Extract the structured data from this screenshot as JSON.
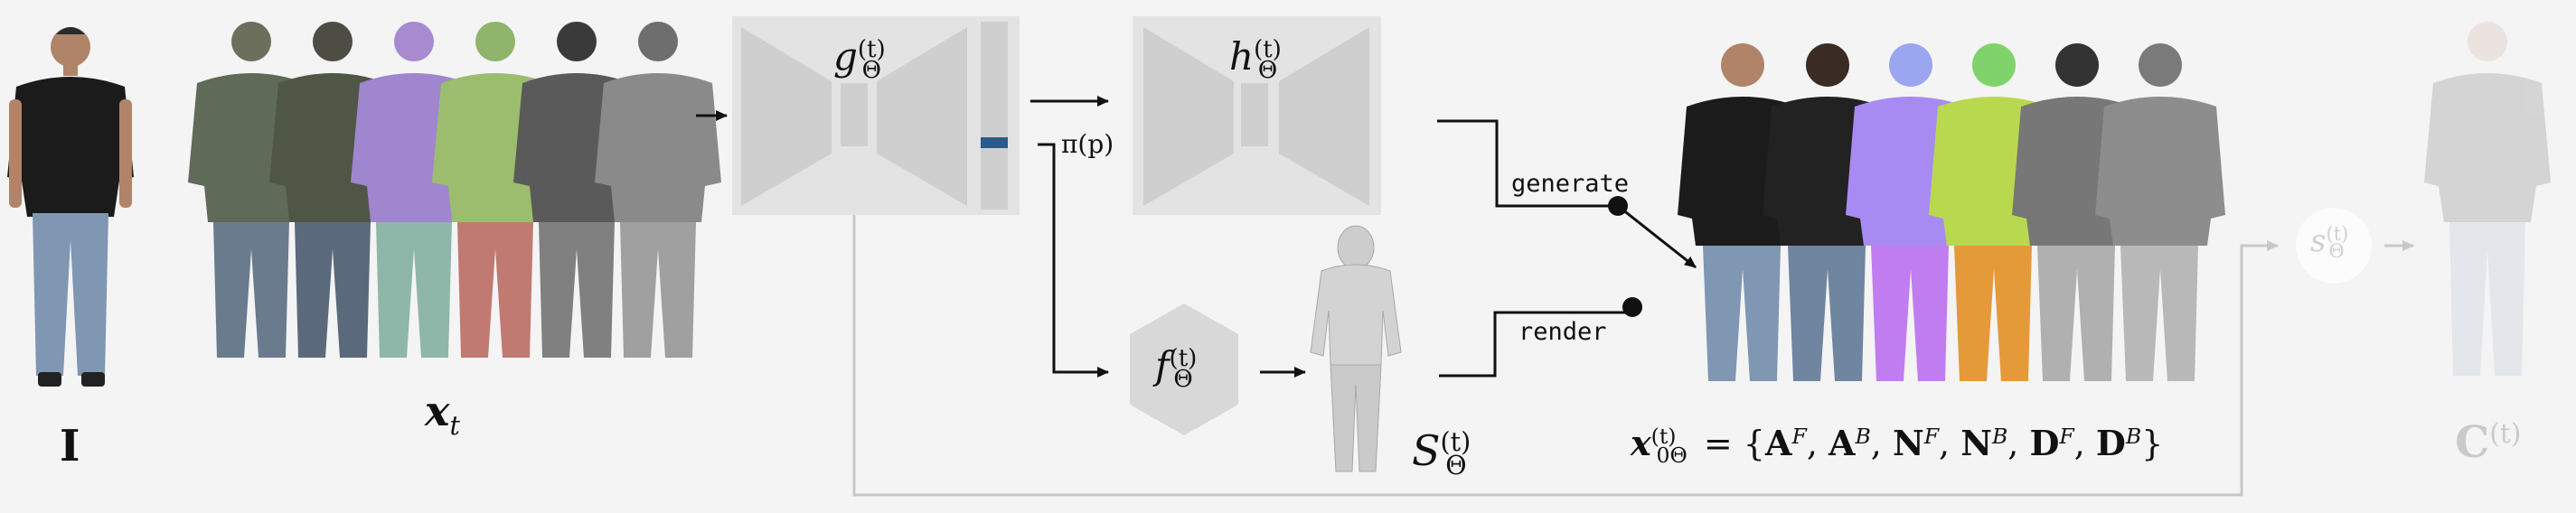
{
  "input_image": {
    "label": "I"
  },
  "noisy_input": {
    "label_main": "x",
    "label_sub": "t"
  },
  "network_g": {
    "name": "g",
    "sub": "Θ",
    "sup": "(t)"
  },
  "network_h": {
    "name": "h",
    "sub": "Θ",
    "sup": "(t)"
  },
  "network_f": {
    "name": "f",
    "sub": "Θ",
    "sup": "(t)"
  },
  "projection": {
    "label": "π(p)"
  },
  "mesh": {
    "name": "S",
    "sub": "Θ",
    "sup": "(t)"
  },
  "branch_labels": {
    "generate": "generate",
    "render": "render"
  },
  "output": {
    "lhs_main": "x",
    "lhs_sub": "0Θ",
    "lhs_sup": "(t)",
    "set_text": "= {A",
    "items": [
      {
        "base": "A",
        "sup": "F"
      },
      {
        "base": "A",
        "sup": "B"
      },
      {
        "base": "N",
        "sup": "F"
      },
      {
        "base": "N",
        "sup": "B"
      },
      {
        "base": "D",
        "sup": "F"
      },
      {
        "base": "D",
        "sup": "B"
      }
    ]
  },
  "shading": {
    "name": "s",
    "sub": "Θ",
    "sup": "(t)"
  },
  "final_output": {
    "name": "C",
    "sup": "(t)"
  },
  "colors": {
    "arrow": "#111111",
    "block": "#e3e3e3",
    "block_inner": "#cfcfcf",
    "token": "#2b5b8a",
    "feedback_line": "#c8c8c8",
    "hex": "#d8d8d8"
  }
}
